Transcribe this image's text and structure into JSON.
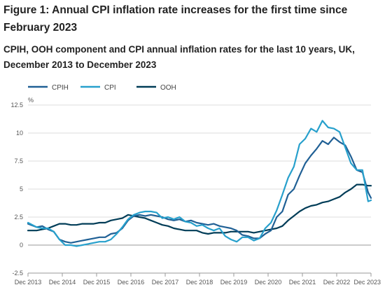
{
  "figure": {
    "title": "Figure 1: Annual CPI inflation rate increases for the first time since February 2023",
    "subtitle": "CPIH, OOH component and CPI annual inflation rates for the last 10 years, UK, December 2013 to December 2023"
  },
  "chart_data": {
    "type": "line",
    "ylabel": "%",
    "xlabel": "",
    "ylim": [
      -2.5,
      12.5
    ],
    "yticks": [
      "12.5",
      "10",
      "7.5",
      "5",
      "2.5",
      "0",
      "-2.5"
    ],
    "xticks": [
      "Dec 2013",
      "Dec 2014",
      "Dec 2015",
      "Dec 2016",
      "Dec 2017",
      "Dec 2018",
      "Dec 2019",
      "Dec 2020",
      "Dec 2021",
      "Dec 2022",
      "Dec 2023"
    ],
    "grid": "horizontal",
    "legend_position": "top-left",
    "colors": {
      "CPIH": "#206095",
      "CPI": "#27a0cc",
      "OOH": "#003c57",
      "grid": "#dddddd",
      "axis": "#999999"
    },
    "series": [
      {
        "name": "CPIH",
        "color": "#206095",
        "points": [
          [
            0,
            1.9
          ],
          [
            3,
            1.6
          ],
          [
            5,
            1.7
          ],
          [
            7,
            1.4
          ],
          [
            9,
            1.2
          ],
          [
            11,
            0.5
          ],
          [
            13,
            0.3
          ],
          [
            15,
            0.2
          ],
          [
            17,
            0.3
          ],
          [
            19,
            0.4
          ],
          [
            21,
            0.5
          ],
          [
            23,
            0.6
          ],
          [
            25,
            0.7
          ],
          [
            27,
            0.7
          ],
          [
            29,
            1.0
          ],
          [
            31,
            1.1
          ],
          [
            33,
            1.5
          ],
          [
            35,
            2.2
          ],
          [
            37,
            2.6
          ],
          [
            39,
            2.7
          ],
          [
            41,
            2.6
          ],
          [
            43,
            2.7
          ],
          [
            45,
            2.6
          ],
          [
            47,
            2.5
          ],
          [
            49,
            2.3
          ],
          [
            51,
            2.2
          ],
          [
            53,
            2.3
          ],
          [
            55,
            2.1
          ],
          [
            57,
            2.2
          ],
          [
            59,
            2.0
          ],
          [
            61,
            1.9
          ],
          [
            63,
            1.8
          ],
          [
            65,
            1.9
          ],
          [
            67,
            1.7
          ],
          [
            69,
            1.6
          ],
          [
            71,
            1.5
          ],
          [
            73,
            1.3
          ],
          [
            75,
            0.9
          ],
          [
            77,
            0.8
          ],
          [
            79,
            0.6
          ],
          [
            81,
            0.6
          ],
          [
            83,
            1.0
          ],
          [
            85,
            1.3
          ],
          [
            87,
            2.5
          ],
          [
            89,
            3.0
          ],
          [
            91,
            4.5
          ],
          [
            93,
            5.0
          ],
          [
            95,
            6.2
          ],
          [
            97,
            7.3
          ],
          [
            99,
            8.0
          ],
          [
            101,
            8.6
          ],
          [
            103,
            9.3
          ],
          [
            105,
            9.0
          ],
          [
            107,
            9.6
          ],
          [
            109,
            9.2
          ],
          [
            111,
            8.9
          ],
          [
            113,
            7.9
          ],
          [
            115,
            6.7
          ],
          [
            117,
            6.5
          ],
          [
            119,
            4.7
          ],
          [
            120,
            4.2
          ]
        ]
      },
      {
        "name": "CPI",
        "color": "#27a0cc",
        "points": [
          [
            0,
            2.0
          ],
          [
            3,
            1.6
          ],
          [
            5,
            1.5
          ],
          [
            7,
            1.5
          ],
          [
            9,
            1.2
          ],
          [
            11,
            0.5
          ],
          [
            13,
            0.0
          ],
          [
            15,
            0.0
          ],
          [
            17,
            -0.1
          ],
          [
            19,
            0.0
          ],
          [
            21,
            0.1
          ],
          [
            23,
            0.2
          ],
          [
            25,
            0.3
          ],
          [
            27,
            0.3
          ],
          [
            29,
            0.5
          ],
          [
            31,
            1.0
          ],
          [
            33,
            1.6
          ],
          [
            35,
            2.3
          ],
          [
            37,
            2.7
          ],
          [
            39,
            2.9
          ],
          [
            41,
            3.0
          ],
          [
            43,
            3.0
          ],
          [
            45,
            2.9
          ],
          [
            47,
            2.4
          ],
          [
            49,
            2.5
          ],
          [
            51,
            2.3
          ],
          [
            53,
            2.5
          ],
          [
            55,
            2.1
          ],
          [
            57,
            2.0
          ],
          [
            59,
            1.7
          ],
          [
            61,
            1.8
          ],
          [
            63,
            1.5
          ],
          [
            65,
            1.3
          ],
          [
            67,
            1.5
          ],
          [
            69,
            0.8
          ],
          [
            71,
            0.5
          ],
          [
            73,
            0.3
          ],
          [
            75,
            0.7
          ],
          [
            77,
            0.7
          ],
          [
            79,
            0.4
          ],
          [
            81,
            0.6
          ],
          [
            83,
            1.5
          ],
          [
            85,
            2.0
          ],
          [
            87,
            3.1
          ],
          [
            89,
            4.5
          ],
          [
            91,
            6.0
          ],
          [
            93,
            7.0
          ],
          [
            95,
            9.0
          ],
          [
            97,
            9.5
          ],
          [
            99,
            10.4
          ],
          [
            101,
            10.1
          ],
          [
            103,
            11.1
          ],
          [
            105,
            10.5
          ],
          [
            107,
            10.4
          ],
          [
            109,
            10.1
          ],
          [
            111,
            8.7
          ],
          [
            113,
            7.3
          ],
          [
            115,
            6.7
          ],
          [
            117,
            6.7
          ],
          [
            119,
            3.9
          ],
          [
            120,
            4.0
          ]
        ]
      },
      {
        "name": "OOH",
        "color": "#003c57",
        "points": [
          [
            0,
            1.3
          ],
          [
            3,
            1.3
          ],
          [
            5,
            1.4
          ],
          [
            7,
            1.5
          ],
          [
            9,
            1.7
          ],
          [
            11,
            1.9
          ],
          [
            13,
            1.9
          ],
          [
            15,
            1.8
          ],
          [
            17,
            1.8
          ],
          [
            19,
            1.9
          ],
          [
            21,
            1.9
          ],
          [
            23,
            1.9
          ],
          [
            25,
            2.0
          ],
          [
            27,
            2.0
          ],
          [
            29,
            2.2
          ],
          [
            31,
            2.3
          ],
          [
            33,
            2.4
          ],
          [
            35,
            2.7
          ],
          [
            37,
            2.6
          ],
          [
            39,
            2.5
          ],
          [
            41,
            2.4
          ],
          [
            43,
            2.2
          ],
          [
            45,
            2.0
          ],
          [
            47,
            1.8
          ],
          [
            49,
            1.7
          ],
          [
            51,
            1.5
          ],
          [
            53,
            1.4
          ],
          [
            55,
            1.3
          ],
          [
            57,
            1.3
          ],
          [
            59,
            1.3
          ],
          [
            61,
            1.1
          ],
          [
            63,
            1.0
          ],
          [
            65,
            1.1
          ],
          [
            67,
            1.1
          ],
          [
            69,
            1.1
          ],
          [
            71,
            1.2
          ],
          [
            73,
            1.2
          ],
          [
            75,
            1.2
          ],
          [
            77,
            1.2
          ],
          [
            79,
            1.1
          ],
          [
            81,
            1.2
          ],
          [
            83,
            1.3
          ],
          [
            85,
            1.4
          ],
          [
            87,
            1.5
          ],
          [
            89,
            1.7
          ],
          [
            91,
            2.2
          ],
          [
            93,
            2.6
          ],
          [
            95,
            3.0
          ],
          [
            97,
            3.3
          ],
          [
            99,
            3.5
          ],
          [
            101,
            3.6
          ],
          [
            103,
            3.8
          ],
          [
            105,
            3.9
          ],
          [
            107,
            4.1
          ],
          [
            109,
            4.3
          ],
          [
            111,
            4.7
          ],
          [
            113,
            5.0
          ],
          [
            115,
            5.4
          ],
          [
            117,
            5.4
          ],
          [
            119,
            5.3
          ],
          [
            120,
            5.3
          ]
        ]
      }
    ]
  }
}
